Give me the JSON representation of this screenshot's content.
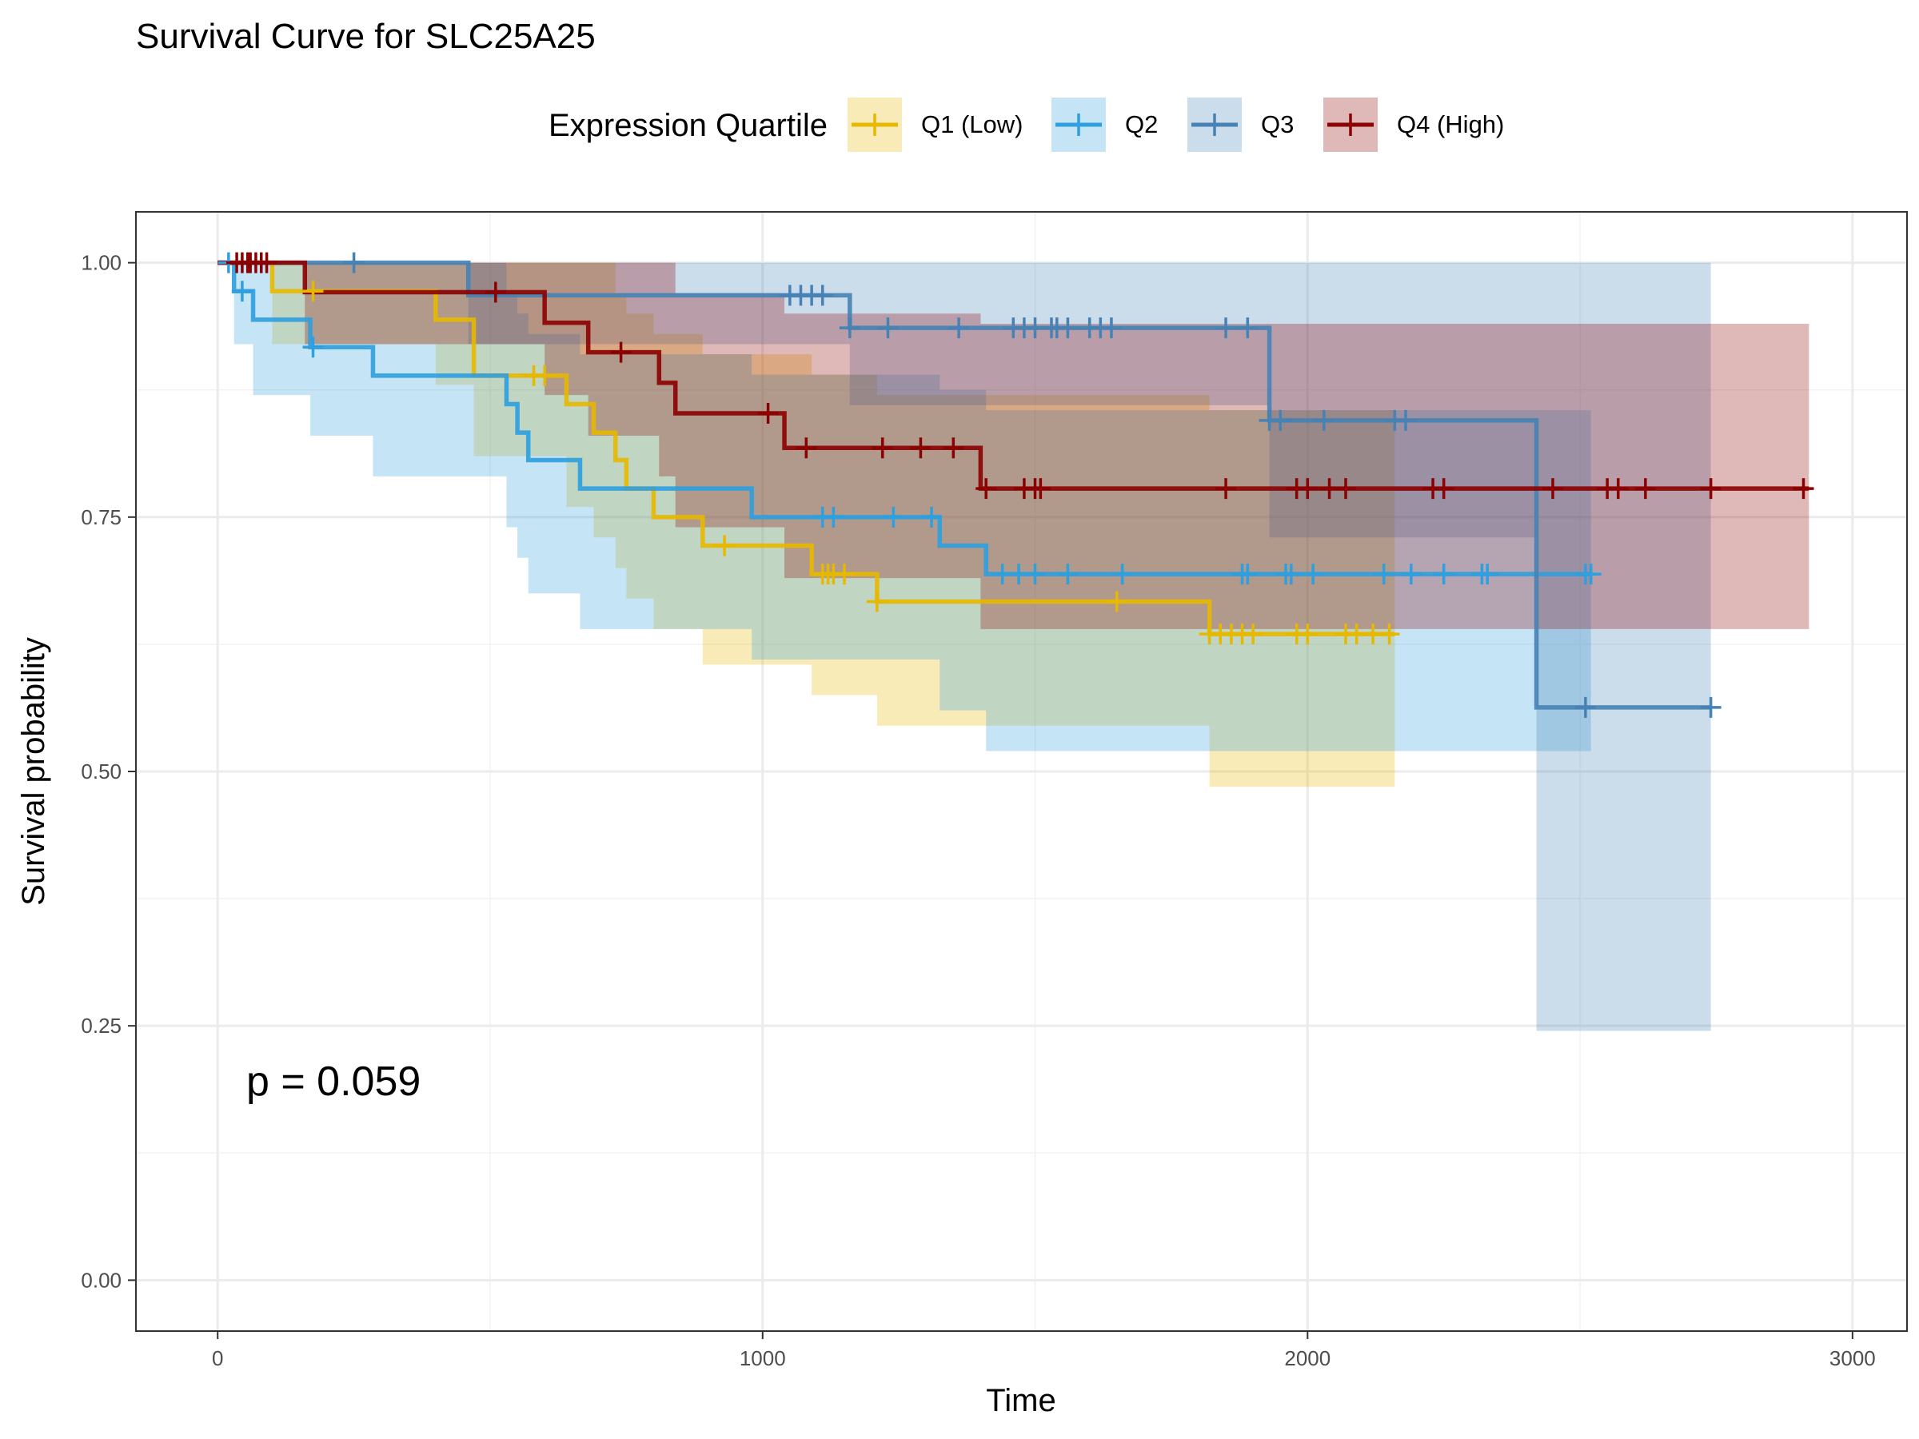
{
  "chart_data": {
    "type": "line",
    "subtype": "kaplan-meier survival curve with confidence bands and censor marks",
    "title": "Survival Curve for SLC25A25",
    "xlabel": "Time",
    "ylabel": "Survival probability",
    "xlim": [
      -150,
      3100
    ],
    "ylim": [
      -0.05,
      1.05
    ],
    "x_ticks": [
      0,
      1000,
      2000,
      3000
    ],
    "x_tick_labels": [
      "0",
      "1000",
      "2000",
      "3000"
    ],
    "y_ticks": [
      0,
      0.25,
      0.5,
      0.75,
      1.0
    ],
    "y_tick_labels": [
      "0.00",
      "0.25",
      "0.50",
      "0.75",
      "1.00"
    ],
    "grid": true,
    "legend": {
      "title": "Expression Quartile",
      "position": "top"
    },
    "annotation": "p = 0.059",
    "series": [
      {
        "name": "Q1 (Low)",
        "color": "#E7B800",
        "steps": [
          [
            0,
            1.0
          ],
          [
            100,
            0.972
          ],
          [
            400,
            0.944
          ],
          [
            470,
            0.889
          ],
          [
            640,
            0.861
          ],
          [
            690,
            0.833
          ],
          [
            730,
            0.806
          ],
          [
            750,
            0.778
          ],
          [
            800,
            0.75
          ],
          [
            890,
            0.722
          ],
          [
            1090,
            0.694
          ],
          [
            1210,
            0.667
          ],
          [
            1820,
            0.635
          ],
          [
            2160,
            0.635
          ]
        ],
        "lower": [
          [
            0,
            1.0
          ],
          [
            100,
            0.92
          ],
          [
            400,
            0.88
          ],
          [
            470,
            0.81
          ],
          [
            640,
            0.76
          ],
          [
            690,
            0.73
          ],
          [
            730,
            0.7
          ],
          [
            750,
            0.67
          ],
          [
            800,
            0.64
          ],
          [
            890,
            0.605
          ],
          [
            1090,
            0.575
          ],
          [
            1210,
            0.545
          ],
          [
            1820,
            0.485
          ],
          [
            2160,
            0.485
          ]
        ],
        "upper": [
          [
            0,
            1.0
          ],
          [
            100,
            1.0
          ],
          [
            400,
            1.0
          ],
          [
            470,
            1.0
          ],
          [
            640,
            1.0
          ],
          [
            690,
            1.0
          ],
          [
            730,
            0.97
          ],
          [
            750,
            0.95
          ],
          [
            800,
            0.93
          ],
          [
            890,
            0.91
          ],
          [
            1090,
            0.89
          ],
          [
            1210,
            0.87
          ],
          [
            1820,
            0.855
          ],
          [
            2160,
            0.855
          ]
        ],
        "censor_times": [
          175,
          580,
          600,
          930,
          1110,
          1120,
          1130,
          1150,
          1210,
          1650,
          1820,
          1840,
          1860,
          1880,
          1900,
          1980,
          2000,
          2070,
          2090,
          2120,
          2150
        ]
      },
      {
        "name": "Q2",
        "color": "#2E9FDF",
        "steps": [
          [
            0,
            1.0
          ],
          [
            30,
            0.972
          ],
          [
            65,
            0.944
          ],
          [
            170,
            0.917
          ],
          [
            285,
            0.889
          ],
          [
            530,
            0.861
          ],
          [
            550,
            0.833
          ],
          [
            570,
            0.806
          ],
          [
            665,
            0.778
          ],
          [
            980,
            0.75
          ],
          [
            1325,
            0.722
          ],
          [
            1410,
            0.694
          ],
          [
            2520,
            0.694
          ]
        ],
        "lower": [
          [
            0,
            1.0
          ],
          [
            30,
            0.92
          ],
          [
            65,
            0.87
          ],
          [
            170,
            0.83
          ],
          [
            285,
            0.79
          ],
          [
            530,
            0.74
          ],
          [
            550,
            0.71
          ],
          [
            570,
            0.675
          ],
          [
            665,
            0.64
          ],
          [
            980,
            0.61
          ],
          [
            1325,
            0.56
          ],
          [
            1410,
            0.52
          ],
          [
            2520,
            0.52
          ]
        ],
        "upper": [
          [
            0,
            1.0
          ],
          [
            30,
            1.0
          ],
          [
            65,
            1.0
          ],
          [
            170,
            1.0
          ],
          [
            285,
            1.0
          ],
          [
            530,
            0.97
          ],
          [
            550,
            0.95
          ],
          [
            570,
            0.93
          ],
          [
            665,
            0.91
          ],
          [
            980,
            0.89
          ],
          [
            1325,
            0.875
          ],
          [
            1410,
            0.855
          ],
          [
            2520,
            0.855
          ]
        ],
        "censor_times": [
          20,
          45,
          175,
          1110,
          1130,
          1240,
          1310,
          1440,
          1470,
          1500,
          1560,
          1660,
          1880,
          1890,
          1960,
          1970,
          2010,
          2140,
          2190,
          2250,
          2320,
          2330,
          2510,
          2520
        ]
      },
      {
        "name": "Q3",
        "color": "#4682B4",
        "steps": [
          [
            0,
            1.0
          ],
          [
            460,
            0.968
          ],
          [
            1160,
            0.936
          ],
          [
            1930,
            0.845
          ],
          [
            2420,
            0.563
          ],
          [
            2740,
            0.563
          ]
        ],
        "lower": [
          [
            0,
            1.0
          ],
          [
            460,
            0.92
          ],
          [
            1160,
            0.86
          ],
          [
            1930,
            0.73
          ],
          [
            2420,
            0.245
          ],
          [
            2740,
            0.245
          ]
        ],
        "upper": [
          [
            0,
            1.0
          ],
          [
            460,
            1.0
          ],
          [
            1160,
            1.0
          ],
          [
            1930,
            1.0
          ],
          [
            2420,
            1.0
          ],
          [
            2740,
            1.0
          ]
        ],
        "censor_times": [
          250,
          1050,
          1070,
          1090,
          1110,
          1160,
          1230,
          1360,
          1460,
          1480,
          1500,
          1530,
          1540,
          1560,
          1600,
          1620,
          1640,
          1850,
          1890,
          1930,
          1950,
          2030,
          2160,
          2180,
          2510,
          2740
        ]
      },
      {
        "name": "Q4 (High)",
        "color": "#8B0000",
        "steps": [
          [
            0,
            1.0
          ],
          [
            160,
            0.971
          ],
          [
            600,
            0.941
          ],
          [
            680,
            0.912
          ],
          [
            810,
            0.882
          ],
          [
            840,
            0.852
          ],
          [
            1040,
            0.818
          ],
          [
            1400,
            0.778
          ],
          [
            2920,
            0.778
          ]
        ],
        "lower": [
          [
            0,
            1.0
          ],
          [
            160,
            0.92
          ],
          [
            600,
            0.87
          ],
          [
            680,
            0.83
          ],
          [
            810,
            0.79
          ],
          [
            840,
            0.74
          ],
          [
            1040,
            0.69
          ],
          [
            1400,
            0.64
          ],
          [
            2920,
            0.64
          ]
        ],
        "upper": [
          [
            0,
            1.0
          ],
          [
            160,
            1.0
          ],
          [
            600,
            1.0
          ],
          [
            680,
            1.0
          ],
          [
            810,
            1.0
          ],
          [
            840,
            0.97
          ],
          [
            1040,
            0.95
          ],
          [
            1400,
            0.94
          ],
          [
            2920,
            0.94
          ]
        ],
        "censor_times": [
          35,
          45,
          55,
          60,
          70,
          80,
          90,
          510,
          740,
          1010,
          1080,
          1220,
          1290,
          1350,
          1410,
          1480,
          1500,
          1510,
          1850,
          1980,
          2000,
          2040,
          2070,
          2230,
          2250,
          2450,
          2550,
          2570,
          2620,
          2740,
          2910
        ]
      }
    ]
  }
}
